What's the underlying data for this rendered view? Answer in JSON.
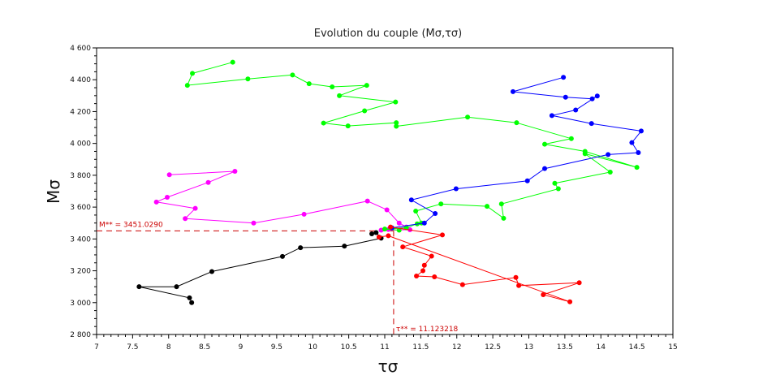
{
  "chart_data": {
    "type": "scatter",
    "title": "Evolution du couple (Mσ,τσ)",
    "xlabel": "τσ",
    "ylabel": "Mσ",
    "xlim": [
      7,
      15
    ],
    "ylim": [
      2800,
      4600
    ],
    "x_ticks": [
      "7",
      "7.5",
      "8",
      "8.5",
      "9",
      "9.5",
      "10",
      "10.5",
      "11",
      "11.5",
      "12",
      "12.5",
      "13",
      "13.5",
      "14",
      "14.5",
      "15"
    ],
    "y_ticks": [
      "2 800",
      "3 000",
      "3 200",
      "3 400",
      "3 600",
      "3 800",
      "4 000",
      "4 200",
      "4 400",
      "4 600"
    ],
    "grid": false,
    "series": [
      {
        "color": "#000000",
        "points": [
          [
            8.32,
            3000
          ],
          [
            8.29,
            3030
          ],
          [
            7.59,
            3100
          ],
          [
            8.11,
            3100
          ],
          [
            8.6,
            3195
          ],
          [
            9.58,
            3290
          ],
          [
            9.83,
            3345
          ],
          [
            10.44,
            3355
          ],
          [
            10.95,
            3405
          ],
          [
            10.88,
            3440
          ],
          [
            10.82,
            3432
          ]
        ]
      },
      {
        "color": "#ff00ff",
        "points": [
          [
            8.01,
            3803
          ],
          [
            8.92,
            3825
          ],
          [
            8.55,
            3755
          ],
          [
            7.98,
            3662
          ],
          [
            7.83,
            3632
          ],
          [
            8.37,
            3592
          ],
          [
            8.23,
            3528
          ],
          [
            9.18,
            3500
          ],
          [
            9.88,
            3555
          ],
          [
            10.76,
            3638
          ],
          [
            11.03,
            3583
          ],
          [
            11.2,
            3500
          ],
          [
            11.3,
            3475
          ],
          [
            11.05,
            3460
          ],
          [
            10.95,
            3455
          ],
          [
            11.35,
            3458
          ]
        ]
      },
      {
        "color": "#00ff00",
        "points": [
          [
            8.89,
            4510
          ],
          [
            8.33,
            4440
          ],
          [
            8.26,
            4365
          ],
          [
            9.1,
            4405
          ],
          [
            9.72,
            4430
          ],
          [
            9.95,
            4375
          ],
          [
            10.27,
            4355
          ],
          [
            10.75,
            4365
          ],
          [
            10.37,
            4300
          ],
          [
            11.15,
            4260
          ],
          [
            10.72,
            4205
          ],
          [
            10.15,
            4128
          ],
          [
            10.49,
            4110
          ],
          [
            11.16,
            4130
          ],
          [
            11.16,
            4108
          ],
          [
            12.15,
            4165
          ],
          [
            12.83,
            4130
          ],
          [
            13.59,
            4030
          ],
          [
            13.22,
            3995
          ],
          [
            13.78,
            3950
          ],
          [
            14.5,
            3850
          ],
          [
            13.78,
            3935
          ],
          [
            14.13,
            3820
          ],
          [
            13.36,
            3750
          ],
          [
            13.41,
            3715
          ],
          [
            12.62,
            3620
          ],
          [
            12.65,
            3530
          ],
          [
            12.42,
            3605
          ],
          [
            11.78,
            3620
          ],
          [
            11.43,
            3575
          ],
          [
            11.51,
            3500
          ],
          [
            11.45,
            3495
          ],
          [
            11.3,
            3470
          ],
          [
            11.0,
            3462
          ],
          [
            11.2,
            3455
          ]
        ]
      },
      {
        "color": "#0000ff",
        "points": [
          [
            13.48,
            4415
          ],
          [
            12.78,
            4325
          ],
          [
            13.51,
            4290
          ],
          [
            13.88,
            4280
          ],
          [
            13.95,
            4298
          ],
          [
            13.65,
            4210
          ],
          [
            13.32,
            4175
          ],
          [
            13.87,
            4125
          ],
          [
            14.56,
            4078
          ],
          [
            14.43,
            4005
          ],
          [
            14.52,
            3942
          ],
          [
            14.1,
            3930
          ],
          [
            13.22,
            3842
          ],
          [
            12.98,
            3765
          ],
          [
            11.99,
            3715
          ],
          [
            11.37,
            3645
          ],
          [
            11.7,
            3560
          ],
          [
            11.55,
            3500
          ],
          [
            11.1,
            3470
          ]
        ]
      },
      {
        "color": "#ff0000",
        "points": [
          [
            11.08,
            3475
          ],
          [
            11.8,
            3425
          ],
          [
            11.25,
            3350
          ],
          [
            11.65,
            3292
          ],
          [
            11.55,
            3235
          ],
          [
            11.53,
            3200
          ],
          [
            11.44,
            3167
          ],
          [
            11.69,
            3162
          ],
          [
            12.08,
            3113
          ],
          [
            12.82,
            3158
          ],
          [
            12.86,
            3107
          ],
          [
            13.7,
            3125
          ],
          [
            13.2,
            3050
          ],
          [
            13.57,
            3005
          ],
          [
            11.05,
            3420
          ],
          [
            10.92,
            3412
          ]
        ]
      }
    ],
    "reference_lines": {
      "m_label": "M** = 3451.0290",
      "m_value": 3451.029,
      "t_label": "τ** = 11.123218",
      "t_value": 11.123218,
      "color": "#cc0000"
    }
  }
}
